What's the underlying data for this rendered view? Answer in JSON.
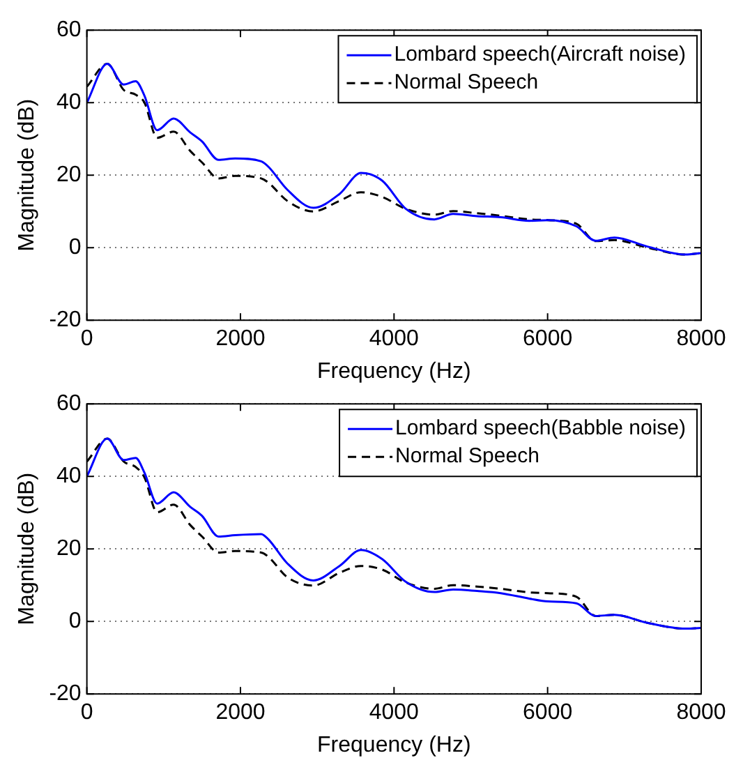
{
  "chart_data": [
    {
      "type": "line",
      "xlabel": "Frequency (Hz)",
      "ylabel": "Magnitude (dB)",
      "xlim": [
        0,
        8000
      ],
      "xticks": [
        0,
        2000,
        4000,
        6000,
        8000
      ],
      "ylim": [
        -20,
        60
      ],
      "yticks": [
        -20,
        0,
        20,
        40,
        60
      ],
      "grid": "y",
      "legend": "top right",
      "x": [
        0,
        265,
        480,
        635,
        750,
        915,
        1130,
        1345,
        1500,
        1715,
        1930,
        2270,
        2365,
        2610,
        2950,
        3290,
        3570,
        3845,
        4155,
        4525,
        4770,
        5080,
        5390,
        5760,
        6005,
        6375,
        6625,
        6870,
        7300,
        7795,
        8000
      ],
      "series": [
        {
          "name": "Lombard speech(Aircraft noise)",
          "color": "#0000ff",
          "line_style": "solid",
          "values": [
            40,
            50.7,
            45,
            45.9,
            41.9,
            32.4,
            35.6,
            31.8,
            29.3,
            24.2,
            24.6,
            23.8,
            22.3,
            16,
            11,
            14.8,
            20.6,
            18.5,
            10.7,
            7.8,
            9.3,
            8.7,
            8.4,
            7.4,
            7.6,
            5.9,
            1.9,
            2.8,
            0.3,
            -1.9,
            -1.5
          ]
        },
        {
          "name": "Normal Speech",
          "color": "#000000",
          "line_style": "dashed",
          "values": [
            44.4,
            50.7,
            43.5,
            42.2,
            40,
            30.3,
            32,
            26.7,
            23.5,
            19.1,
            19.8,
            19.1,
            17.9,
            12.9,
            10,
            12.9,
            15.3,
            14,
            10.7,
            9.1,
            10.1,
            9.5,
            8.8,
            7.8,
            7.6,
            6.6,
            1.8,
            2.1,
            0,
            -1.9,
            -1.5
          ]
        }
      ]
    },
    {
      "type": "line",
      "xlabel": "Frequency (Hz)",
      "ylabel": "Magnitude (dB)",
      "xlim": [
        0,
        8000
      ],
      "xticks": [
        0,
        2000,
        4000,
        6000,
        8000
      ],
      "ylim": [
        -20,
        60
      ],
      "yticks": [
        -20,
        0,
        20,
        40,
        60
      ],
      "grid": "y",
      "legend": "top right",
      "x": [
        0,
        265,
        480,
        635,
        750,
        915,
        1130,
        1345,
        1500,
        1715,
        1930,
        2270,
        2365,
        2610,
        2950,
        3290,
        3570,
        3845,
        4155,
        4525,
        4770,
        5080,
        5390,
        5760,
        6005,
        6375,
        6625,
        6870,
        7300,
        7795,
        8000
      ],
      "series": [
        {
          "name": "Lombard speech(Babble noise)",
          "color": "#0000ff",
          "line_style": "solid",
          "values": [
            40,
            50.4,
            44.5,
            45.1,
            41,
            32.5,
            35.6,
            31.6,
            29.1,
            23.4,
            23.8,
            24.1,
            22.6,
            16,
            11.3,
            15.3,
            19.7,
            17.2,
            10.9,
            8.1,
            8.8,
            8.4,
            7.8,
            6.3,
            5.5,
            5,
            1.5,
            1.8,
            -0.4,
            -2,
            -1.8
          ]
        },
        {
          "name": "Normal Speech",
          "color": "#000000",
          "line_style": "dashed",
          "values": [
            44.1,
            50.4,
            44.1,
            42.6,
            39.7,
            30.1,
            32.2,
            26.6,
            23.4,
            19,
            19.4,
            19,
            17.8,
            12.2,
            9.9,
            13.4,
            15.3,
            14.3,
            10.7,
            9,
            10,
            9.6,
            9,
            8,
            7.8,
            6.8,
            1.5,
            1.8,
            -0.4,
            -2,
            -1.8
          ]
        }
      ]
    }
  ]
}
